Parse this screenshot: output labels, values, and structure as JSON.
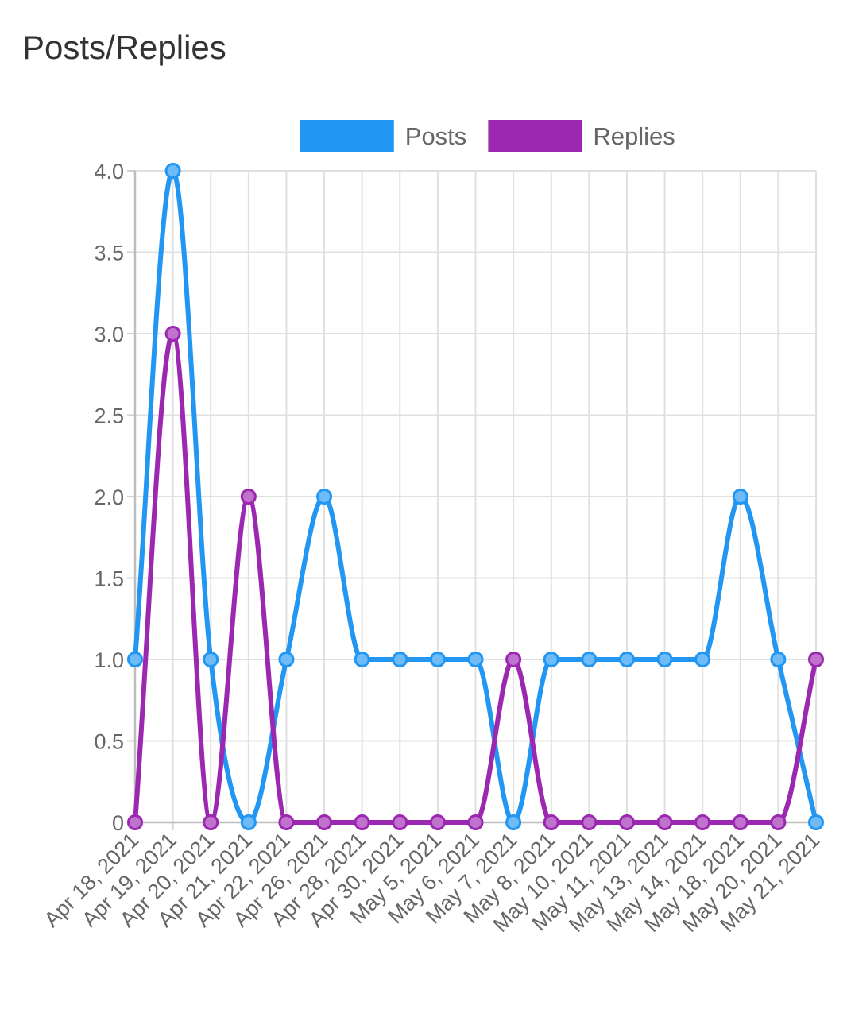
{
  "card": {
    "title": "Posts/Replies"
  },
  "chart_data": {
    "type": "line",
    "x": [
      "Apr 18, 2021",
      "Apr 19, 2021",
      "Apr 20, 2021",
      "Apr 21, 2021",
      "Apr 22, 2021",
      "Apr 26, 2021",
      "Apr 28, 2021",
      "Apr 30, 2021",
      "May 5, 2021",
      "May 6, 2021",
      "May 7, 2021",
      "May 8, 2021",
      "May 10, 2021",
      "May 11, 2021",
      "May 13, 2021",
      "May 14, 2021",
      "May 18, 2021",
      "May 20, 2021",
      "May 21, 2021"
    ],
    "series": [
      {
        "name": "Posts",
        "color": "#2196f3",
        "values": [
          1,
          4,
          1,
          0,
          1,
          2,
          1,
          1,
          1,
          1,
          0,
          1,
          1,
          1,
          1,
          1,
          2,
          1,
          0
        ]
      },
      {
        "name": "Replies",
        "color": "#9c27b0",
        "values": [
          0,
          3,
          0,
          2,
          0,
          0,
          0,
          0,
          0,
          0,
          1,
          0,
          0,
          0,
          0,
          0,
          0,
          0,
          1
        ]
      }
    ],
    "yticks": [
      "0",
      "0.5",
      "1.0",
      "1.5",
      "2.0",
      "2.5",
      "3.0",
      "3.5",
      "4.0"
    ],
    "ylim": [
      0,
      4
    ],
    "grid": true,
    "legend": "top-center",
    "title": "",
    "xlabel": "",
    "ylabel": ""
  }
}
